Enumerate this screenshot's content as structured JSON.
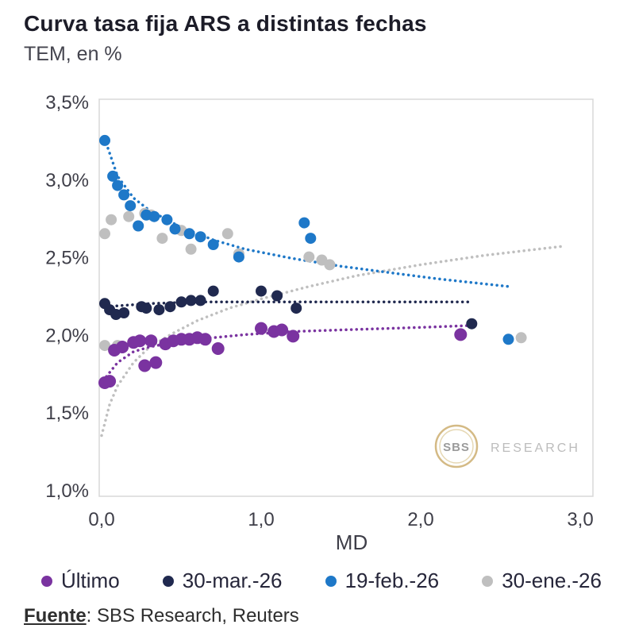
{
  "header": {
    "title": "Curva tasa fija ARS a distintas fechas",
    "subtitle": "TEM, en %"
  },
  "watermark": {
    "logo_text": "SBS",
    "brand_text": "RESEARCH"
  },
  "footer": {
    "label": "Fuente",
    "text": ": SBS Research, Reuters"
  },
  "chart_data": {
    "type": "scatter",
    "title": "Curva tasa fija ARS a distintas fechas",
    "subtitle": "TEM, en %",
    "xlabel": "MD",
    "ylabel": "TEM, en %",
    "xlim": [
      0.0,
      3.0
    ],
    "ylim": [
      1.0,
      3.5
    ],
    "grid": false,
    "legend_position": "bottom",
    "xticks": {
      "values": [
        0.0,
        1.0,
        2.0,
        3.0
      ],
      "labels": [
        "0,0",
        "1,0",
        "2,0",
        "3,0"
      ]
    },
    "yticks": {
      "values": [
        1.0,
        1.5,
        2.0,
        2.5,
        3.0,
        3.5
      ],
      "labels": [
        "1,0%",
        "1,5%",
        "2,0%",
        "2,5%",
        "3,0%",
        "3,5%"
      ]
    },
    "series": [
      {
        "id": "ultimo",
        "name": "Último",
        "color": "#7a33a0",
        "marker_size": 8,
        "points": [
          [
            0.02,
            1.69
          ],
          [
            0.05,
            1.7
          ],
          [
            0.08,
            1.9
          ],
          [
            0.13,
            1.92
          ],
          [
            0.2,
            1.95
          ],
          [
            0.24,
            1.96
          ],
          [
            0.27,
            1.8
          ],
          [
            0.31,
            1.96
          ],
          [
            0.34,
            1.82
          ],
          [
            0.4,
            1.94
          ],
          [
            0.45,
            1.96
          ],
          [
            0.5,
            1.97
          ],
          [
            0.55,
            1.97
          ],
          [
            0.6,
            1.98
          ],
          [
            0.65,
            1.97
          ],
          [
            0.73,
            1.91
          ],
          [
            1.0,
            2.04
          ],
          [
            1.08,
            2.02
          ],
          [
            1.13,
            2.03
          ],
          [
            1.2,
            1.99
          ],
          [
            2.25,
            2.0
          ]
        ],
        "trend": [
          [
            0.03,
            1.73
          ],
          [
            0.1,
            1.82
          ],
          [
            0.2,
            1.89
          ],
          [
            0.3,
            1.92
          ],
          [
            0.5,
            1.96
          ],
          [
            0.7,
            1.98
          ],
          [
            0.9,
            2.0
          ],
          [
            1.2,
            2.02
          ],
          [
            1.5,
            2.03
          ],
          [
            1.8,
            2.04
          ],
          [
            2.1,
            2.05
          ],
          [
            2.35,
            2.06
          ]
        ]
      },
      {
        "id": "30-mar-26",
        "name": "30-mar.-26",
        "color": "#20294f",
        "marker_size": 7,
        "points": [
          [
            0.02,
            2.2
          ],
          [
            0.05,
            2.16
          ],
          [
            0.09,
            2.13
          ],
          [
            0.14,
            2.14
          ],
          [
            0.25,
            2.18
          ],
          [
            0.28,
            2.17
          ],
          [
            0.36,
            2.16
          ],
          [
            0.43,
            2.18
          ],
          [
            0.5,
            2.21
          ],
          [
            0.56,
            2.22
          ],
          [
            0.62,
            2.22
          ],
          [
            0.7,
            2.28
          ],
          [
            1.0,
            2.28
          ],
          [
            1.1,
            2.25
          ],
          [
            1.22,
            2.17
          ],
          [
            2.32,
            2.07
          ]
        ],
        "trend": [
          [
            0.03,
            2.18
          ],
          [
            0.3,
            2.2
          ],
          [
            0.6,
            2.21
          ],
          [
            1.0,
            2.21
          ],
          [
            1.4,
            2.21
          ],
          [
            1.8,
            2.21
          ],
          [
            2.3,
            2.21
          ]
        ]
      },
      {
        "id": "19-feb-26",
        "name": "19-feb.-26",
        "color": "#1e78c8",
        "marker_size": 7,
        "points": [
          [
            0.02,
            3.25
          ],
          [
            0.07,
            3.02
          ],
          [
            0.1,
            2.96
          ],
          [
            0.14,
            2.9
          ],
          [
            0.18,
            2.83
          ],
          [
            0.23,
            2.7
          ],
          [
            0.28,
            2.77
          ],
          [
            0.33,
            2.76
          ],
          [
            0.41,
            2.74
          ],
          [
            0.46,
            2.68
          ],
          [
            0.55,
            2.65
          ],
          [
            0.62,
            2.63
          ],
          [
            0.7,
            2.58
          ],
          [
            0.86,
            2.5
          ],
          [
            1.27,
            2.72
          ],
          [
            1.31,
            2.62
          ],
          [
            2.55,
            1.97
          ]
        ],
        "trend": [
          [
            0.04,
            3.2
          ],
          [
            0.1,
            3.02
          ],
          [
            0.2,
            2.88
          ],
          [
            0.3,
            2.8
          ],
          [
            0.5,
            2.69
          ],
          [
            0.7,
            2.61
          ],
          [
            0.9,
            2.55
          ],
          [
            1.2,
            2.49
          ],
          [
            1.5,
            2.44
          ],
          [
            1.8,
            2.4
          ],
          [
            2.1,
            2.36
          ],
          [
            2.55,
            2.31
          ]
        ]
      },
      {
        "id": "30-ene-26",
        "name": "30-ene.-26",
        "color": "#bfbfbf",
        "marker_size": 7,
        "points": [
          [
            0.02,
            2.65
          ],
          [
            0.06,
            2.74
          ],
          [
            0.02,
            1.93
          ],
          [
            0.1,
            1.93
          ],
          [
            0.17,
            2.76
          ],
          [
            0.23,
            2.7
          ],
          [
            0.27,
            2.78
          ],
          [
            0.31,
            2.77
          ],
          [
            0.38,
            2.62
          ],
          [
            0.5,
            2.67
          ],
          [
            0.56,
            2.55
          ],
          [
            0.79,
            2.65
          ],
          [
            0.86,
            2.52
          ],
          [
            1.3,
            2.5
          ],
          [
            1.38,
            2.48
          ],
          [
            1.43,
            2.45
          ],
          [
            2.63,
            1.98
          ]
        ],
        "trend": [
          [
            0.0,
            1.35
          ],
          [
            0.05,
            1.55
          ],
          [
            0.1,
            1.67
          ],
          [
            0.2,
            1.82
          ],
          [
            0.3,
            1.92
          ],
          [
            0.45,
            2.01
          ],
          [
            0.6,
            2.09
          ],
          [
            0.8,
            2.17
          ],
          [
            1.0,
            2.23
          ],
          [
            1.3,
            2.31
          ],
          [
            1.6,
            2.38
          ],
          [
            2.0,
            2.45
          ],
          [
            2.4,
            2.51
          ],
          [
            2.9,
            2.57
          ]
        ]
      }
    ]
  }
}
